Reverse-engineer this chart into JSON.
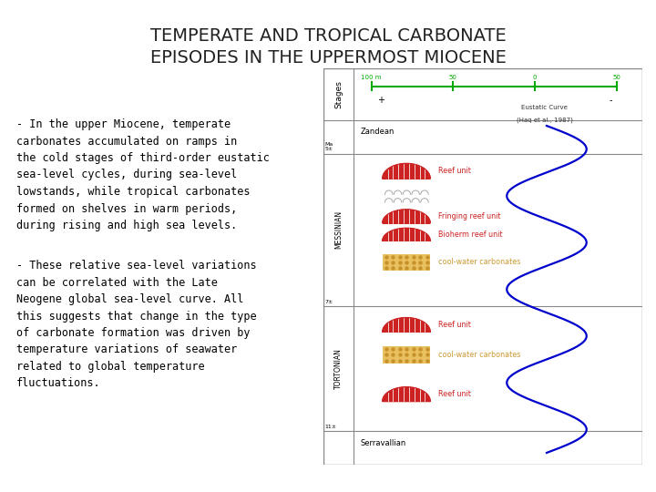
{
  "title_line1": "TEMPERATE AND TROPICAL CARBONATE",
  "title_line2": "EPISODES IN THE UPPERMOST MIOCENE",
  "title_fontsize": 14,
  "title_color": "#222222",
  "bg_color": "#ffffff",
  "text1_clean": "- In the upper Miocene, temperate\ncarbonates accumulated on ramps in\nthe cold stages of third-order eustatic\nsea-level cycles, during sea-level\nlowstands, while tropical carbonates\nformed on shelves in warm periods,\nduring rising and high sea levels.",
  "text2": "- These relative sea-level variations\ncan be correlated with the Late\nNeogene global sea-level curve. All\nthis suggests that change in the type\nof carbonate formation was driven by\ntemperature variations of seawater\nrelated to global temperature\nfluctuations.",
  "text_fontsize": 8.5,
  "text_color": "#000000",
  "reef_color": "#cc2222",
  "cool_water_color": "#e8c060",
  "cool_water_dot_color": "#c8922a",
  "label_color_reef": "#cc2222",
  "label_color_cool": "#cc9933",
  "curve_color": "#0000cc",
  "axis_color": "#00aa00",
  "box_border_color": "#888888"
}
